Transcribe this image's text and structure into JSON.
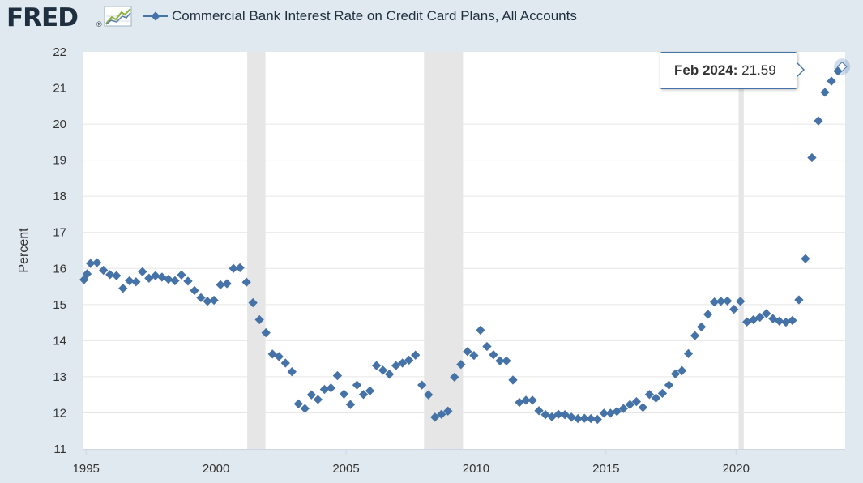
{
  "header": {
    "logo_text": "FRED",
    "logo_mark": "®",
    "graph_icon": "line-chart-icon"
  },
  "chart_data": {
    "type": "scatter",
    "title": "Commercial Bank Interest Rate on Credit Card Plans, All Accounts",
    "xlabel": "",
    "ylabel": "Percent",
    "ylim": [
      11,
      22
    ],
    "xlim": [
      1994.9,
      2024.2
    ],
    "yticks": [
      "11",
      "12",
      "13",
      "14",
      "15",
      "16",
      "17",
      "18",
      "19",
      "20",
      "21",
      "22"
    ],
    "xticks": [
      "1995",
      "2000",
      "2005",
      "2010",
      "2015",
      "2020"
    ],
    "grid": true,
    "legend_position": "top-left",
    "colors": {
      "series": "#4572a7",
      "recession": "#e6e6e6",
      "plot_bg": "#ffffff",
      "page_bg": "#e1e9f0"
    },
    "recessions": [
      [
        2001.2,
        2001.9
      ],
      [
        2008.0,
        2009.5
      ],
      [
        2020.1,
        2020.3
      ]
    ],
    "series": [
      {
        "name": "Commercial Bank Interest Rate on Credit Card Plans, All Accounts",
        "points": [
          [
            1994.92,
            15.69
          ],
          [
            1995.04,
            15.85
          ],
          [
            1995.17,
            16.14
          ],
          [
            1995.42,
            16.16
          ],
          [
            1995.67,
            15.95
          ],
          [
            1995.92,
            15.83
          ],
          [
            1996.17,
            15.8
          ],
          [
            1996.42,
            15.45
          ],
          [
            1996.67,
            15.66
          ],
          [
            1996.92,
            15.63
          ],
          [
            1997.17,
            15.91
          ],
          [
            1997.42,
            15.73
          ],
          [
            1997.67,
            15.8
          ],
          [
            1997.92,
            15.76
          ],
          [
            1998.17,
            15.7
          ],
          [
            1998.42,
            15.66
          ],
          [
            1998.67,
            15.82
          ],
          [
            1998.92,
            15.65
          ],
          [
            1999.17,
            15.39
          ],
          [
            1999.42,
            15.19
          ],
          [
            1999.67,
            15.09
          ],
          [
            1999.92,
            15.12
          ],
          [
            2000.17,
            15.55
          ],
          [
            2000.42,
            15.58
          ],
          [
            2000.67,
            16.0
          ],
          [
            2000.92,
            16.02
          ],
          [
            2001.17,
            15.62
          ],
          [
            2001.42,
            15.05
          ],
          [
            2001.67,
            14.58
          ],
          [
            2001.92,
            14.22
          ],
          [
            2002.17,
            13.63
          ],
          [
            2002.42,
            13.56
          ],
          [
            2002.67,
            13.38
          ],
          [
            2002.92,
            13.14
          ],
          [
            2003.17,
            12.25
          ],
          [
            2003.42,
            12.12
          ],
          [
            2003.67,
            12.5
          ],
          [
            2003.92,
            12.37
          ],
          [
            2004.17,
            12.65
          ],
          [
            2004.42,
            12.69
          ],
          [
            2004.67,
            13.03
          ],
          [
            2004.92,
            12.52
          ],
          [
            2005.17,
            12.23
          ],
          [
            2005.42,
            12.77
          ],
          [
            2005.67,
            12.51
          ],
          [
            2005.92,
            12.61
          ],
          [
            2006.17,
            13.31
          ],
          [
            2006.42,
            13.18
          ],
          [
            2006.67,
            13.07
          ],
          [
            2006.92,
            13.31
          ],
          [
            2007.17,
            13.38
          ],
          [
            2007.42,
            13.46
          ],
          [
            2007.67,
            13.6
          ],
          [
            2007.92,
            12.77
          ],
          [
            2008.17,
            12.5
          ],
          [
            2008.42,
            11.88
          ],
          [
            2008.67,
            11.96
          ],
          [
            2008.92,
            12.05
          ],
          [
            2009.17,
            12.99
          ],
          [
            2009.42,
            13.34
          ],
          [
            2009.67,
            13.7
          ],
          [
            2009.92,
            13.59
          ],
          [
            2010.17,
            14.29
          ],
          [
            2010.42,
            13.84
          ],
          [
            2010.67,
            13.61
          ],
          [
            2010.92,
            13.44
          ],
          [
            2011.17,
            13.44
          ],
          [
            2011.42,
            12.91
          ],
          [
            2011.67,
            12.29
          ],
          [
            2011.92,
            12.35
          ],
          [
            2012.17,
            12.35
          ],
          [
            2012.42,
            12.06
          ],
          [
            2012.67,
            11.95
          ],
          [
            2012.92,
            11.89
          ],
          [
            2013.17,
            11.96
          ],
          [
            2013.42,
            11.95
          ],
          [
            2013.67,
            11.88
          ],
          [
            2013.92,
            11.84
          ],
          [
            2014.17,
            11.85
          ],
          [
            2014.42,
            11.84
          ],
          [
            2014.67,
            11.82
          ],
          [
            2014.92,
            11.99
          ],
          [
            2015.17,
            11.99
          ],
          [
            2015.42,
            12.04
          ],
          [
            2015.67,
            12.12
          ],
          [
            2015.92,
            12.23
          ],
          [
            2016.17,
            12.31
          ],
          [
            2016.42,
            12.15
          ],
          [
            2016.67,
            12.51
          ],
          [
            2016.92,
            12.41
          ],
          [
            2017.17,
            12.54
          ],
          [
            2017.42,
            12.77
          ],
          [
            2017.67,
            13.08
          ],
          [
            2017.92,
            13.17
          ],
          [
            2018.17,
            13.64
          ],
          [
            2018.42,
            14.14
          ],
          [
            2018.67,
            14.38
          ],
          [
            2018.92,
            14.73
          ],
          [
            2019.17,
            15.07
          ],
          [
            2019.42,
            15.09
          ],
          [
            2019.67,
            15.1
          ],
          [
            2019.92,
            14.87
          ],
          [
            2020.17,
            15.09
          ],
          [
            2020.42,
            14.52
          ],
          [
            2020.67,
            14.58
          ],
          [
            2020.92,
            14.65
          ],
          [
            2021.17,
            14.75
          ],
          [
            2021.42,
            14.61
          ],
          [
            2021.67,
            14.54
          ],
          [
            2021.92,
            14.51
          ],
          [
            2022.17,
            14.56
          ],
          [
            2022.42,
            15.13
          ],
          [
            2022.67,
            16.27
          ],
          [
            2022.92,
            19.07
          ],
          [
            2023.17,
            20.09
          ],
          [
            2023.42,
            20.88
          ],
          [
            2023.67,
            21.19
          ],
          [
            2023.92,
            21.47
          ],
          [
            2024.08,
            21.59
          ]
        ]
      }
    ],
    "tooltip": {
      "label": "Feb 2024:",
      "value": "21.59"
    }
  }
}
